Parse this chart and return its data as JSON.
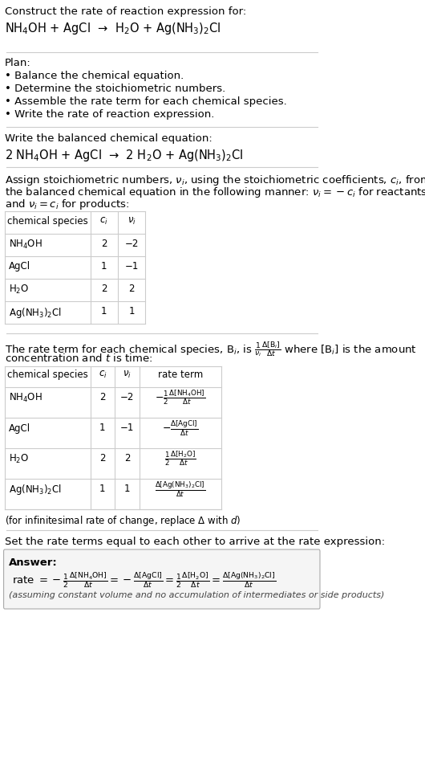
{
  "title_line1": "Construct the rate of reaction expression for:",
  "title_line2": "NH$_4$OH + AgCl  →  H$_2$O + Ag(NH$_3$)$_2$Cl",
  "plan_title": "Plan:",
  "plan_items": [
    "• Balance the chemical equation.",
    "• Determine the stoichiometric numbers.",
    "• Assemble the rate term for each chemical species.",
    "• Write the rate of reaction expression."
  ],
  "balanced_label": "Write the balanced chemical equation:",
  "balanced_eq": "2 NH$_4$OH + AgCl  →  2 H$_2$O + Ag(NH$_3$)$_2$Cl",
  "assign_text1": "Assign stoichiometric numbers, $\\nu_i$, using the stoichiometric coefficients, $c_i$, from",
  "assign_text2": "the balanced chemical equation in the following manner: $\\nu_i = -c_i$ for reactants",
  "assign_text3": "and $\\nu_i = c_i$ for products:",
  "table1_headers": [
    "chemical species",
    "$c_i$",
    "$\\nu_i$"
  ],
  "table1_rows": [
    [
      "NH$_4$OH",
      "2",
      "−2"
    ],
    [
      "AgCl",
      "1",
      "−1"
    ],
    [
      "H$_2$O",
      "2",
      "2"
    ],
    [
      "Ag(NH$_3$)$_2$Cl",
      "1",
      "1"
    ]
  ],
  "rate_text1": "The rate term for each chemical species, B$_i$, is $\\frac{1}{\\nu_i}\\frac{\\Delta[\\mathrm{B}_i]}{\\Delta t}$ where [B$_i$] is the amount",
  "rate_text2": "concentration and $t$ is time:",
  "table2_headers": [
    "chemical species",
    "$c_i$",
    "$\\nu_i$",
    "rate term"
  ],
  "table2_rows": [
    [
      "NH$_4$OH",
      "2",
      "−2",
      "$-\\frac{1}{2}\\frac{\\Delta[\\mathrm{NH_4OH}]}{\\Delta t}$"
    ],
    [
      "AgCl",
      "1",
      "−1",
      "$-\\frac{\\Delta[\\mathrm{AgCl}]}{\\Delta t}$"
    ],
    [
      "H$_2$O",
      "2",
      "2",
      "$\\frac{1}{2}\\frac{\\Delta[\\mathrm{H_2O}]}{\\Delta t}$"
    ],
    [
      "Ag(NH$_3$)$_2$Cl",
      "1",
      "1",
      "$\\frac{\\Delta[\\mathrm{Ag(NH_3)_2Cl}]}{\\Delta t}$"
    ]
  ],
  "infinitesimal_note": "(for infinitesimal rate of change, replace Δ with $d$)",
  "set_rate_text": "Set the rate terms equal to each other to arrive at the rate expression:",
  "answer_label": "Answer:",
  "answer_eq": "rate $= -\\frac{1}{2}\\frac{\\Delta[\\mathrm{NH_4OH}]}{\\Delta t} = -\\frac{\\Delta[\\mathrm{AgCl}]}{\\Delta t} = \\frac{1}{2}\\frac{\\Delta[\\mathrm{H_2O}]}{\\Delta t} = \\frac{\\Delta[\\mathrm{Ag(NH_3)_2Cl}]}{\\Delta t}$",
  "answer_note": "(assuming constant volume and no accumulation of intermediates or side products)",
  "bg_color": "#ffffff",
  "text_color": "#000000",
  "table_border_color": "#bbbbbb",
  "answer_box_color": "#f0f0f0"
}
